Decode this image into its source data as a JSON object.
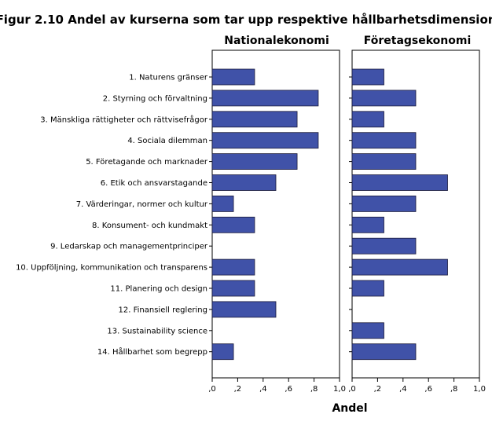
{
  "chart_data": {
    "type": "bar",
    "orientation": "horizontal",
    "title": "Figur 2.10 Andel av kurserna som tar upp respektive hållbarhetsdimension",
    "xlabel": "Andel",
    "ylabel": "",
    "xlim": [
      0,
      1.0
    ],
    "ticks": [
      ",0",
      ",2",
      ",4",
      ",6",
      ",8",
      "1,0"
    ],
    "tick_values": [
      0,
      0.2,
      0.4,
      0.6,
      0.8,
      1.0
    ],
    "categories": [
      "1. Naturens gränser",
      "2. Styrning och förvaltning",
      "3. Mänskliga rättigheter och rättvisefrågor",
      "4. Sociala dilemman",
      "5. Företagande och marknader",
      "6. Etik och ansvarstagande",
      "7. Värderingar, normer och kultur",
      "8. Konsument- och kundmakt",
      "9. Ledarskap och managementprinciper",
      "10. Uppföljning, kommunikation och transparens",
      "11. Planering och design",
      "12. Finansiell reglering",
      "13. Sustainability science",
      "14. Hållbarhet som begrepp"
    ],
    "series": [
      {
        "name": "Nationalekonomi",
        "values": [
          0.333,
          0.833,
          0.667,
          0.833,
          0.667,
          0.5,
          0.167,
          0.333,
          0,
          0.333,
          0.333,
          0.5,
          0,
          0.167
        ]
      },
      {
        "name": "Företagsekonomi",
        "values": [
          0.25,
          0.5,
          0.25,
          0.5,
          0.5,
          0.75,
          0.5,
          0.25,
          0.5,
          0.75,
          0.25,
          0,
          0.25,
          0.5
        ]
      }
    ],
    "bar_color": "#4052a8"
  }
}
